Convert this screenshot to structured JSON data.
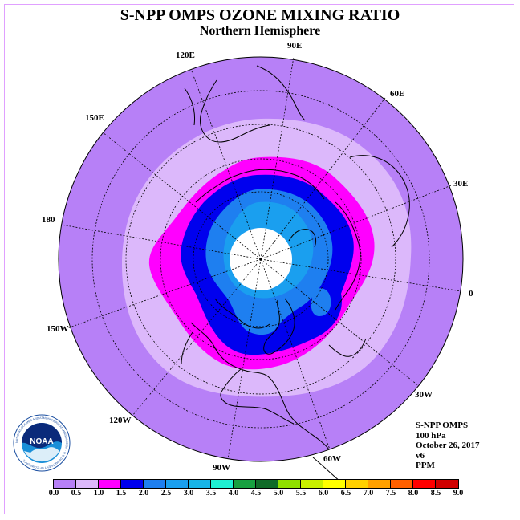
{
  "header": {
    "title": "S-NPP OMPS OZONE MIXING RATIO",
    "subtitle": "Northern Hemisphere"
  },
  "map": {
    "projection": "north polar stereographic",
    "longitude_labels": [
      "90E",
      "60E",
      "30E",
      "0",
      "30W",
      "60W",
      "90W",
      "120W",
      "150W",
      "180",
      "150E",
      "120E"
    ],
    "polar_data_gap": true
  },
  "info": {
    "instrument": "S-NPP OMPS",
    "level": "100 hPa",
    "date": "October 26, 2017",
    "version": "v6",
    "units": "PPM"
  },
  "logo": {
    "icon": "noaa-logo-icon",
    "text": "NOAA",
    "ring_text": "NATIONAL OCEANIC AND ATMOSPHERIC ADMINISTRATION · U.S. DEPARTMENT OF COMMERCE"
  },
  "colorbar": {
    "tick_labels": [
      "0.0",
      "0.5",
      "1.0",
      "1.5",
      "2.0",
      "2.5",
      "3.0",
      "3.5",
      "4.0",
      "4.5",
      "5.0",
      "5.5",
      "6.0",
      "6.5",
      "7.0",
      "7.5",
      "8.0",
      "8.5",
      "9.0"
    ],
    "colors": [
      "#b780f7",
      "#dcb8fb",
      "#ff00ff",
      "#0000ee",
      "#1e7ff0",
      "#1a9fef",
      "#18b4e6",
      "#1ff0d2",
      "#18a040",
      "#106b28",
      "#90e000",
      "#c8f000",
      "#ffff00",
      "#ffd000",
      "#ffa000",
      "#ff6000",
      "#ff0000",
      "#d00000",
      "#8b5a3c"
    ]
  }
}
